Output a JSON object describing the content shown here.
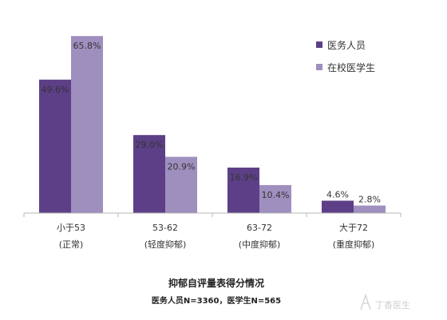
{
  "chart_data": {
    "type": "bar",
    "categories": [
      [
        "小于53",
        "(正常)"
      ],
      [
        "53-62",
        "(轻度抑郁)"
      ],
      [
        "63-72",
        "(中度抑郁)"
      ],
      [
        "大于72",
        "(重度抑郁)"
      ]
    ],
    "series": [
      {
        "name": "医务人员",
        "values": [
          49.6,
          29.0,
          16.9,
          4.6
        ],
        "labels": [
          "49.6%",
          "29.0%",
          "16.9%",
          "4.6%"
        ],
        "color": "#5d3f87"
      },
      {
        "name": "在校医学生",
        "values": [
          65.8,
          20.9,
          10.4,
          2.8
        ],
        "labels": [
          "65.8%",
          "20.9%",
          "10.4%",
          "2.8%"
        ],
        "color": "#9f8fbf"
      }
    ],
    "ylim": [
      0,
      70
    ],
    "grid": false,
    "legend_position": "top-right",
    "title": "抑郁自评量表得分情况",
    "subtitle": "医务人员N=3360，医学生N=565"
  },
  "watermark": {
    "text": "丁香医生"
  }
}
